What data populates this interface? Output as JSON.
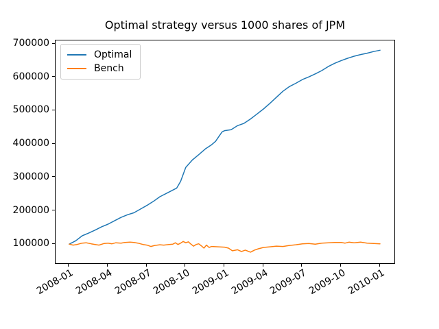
{
  "figure": {
    "background_color": "#ffffff",
    "frame_color": "#000000"
  },
  "chart_data": {
    "type": "line",
    "title": "Optimal strategy versus 1000 shares of JPM",
    "xlabel": "",
    "ylabel": "",
    "grid": false,
    "x_unit": "months since 2008-01",
    "xlim": [
      -1.055,
      25.11
    ],
    "ylim": [
      42850,
      710300
    ],
    "x_tick_positions": [
      0,
      3,
      6,
      9,
      12,
      15,
      18,
      21,
      24
    ],
    "x_tick_labels": [
      "2008-01",
      "2008-04",
      "2008-07",
      "2008-10",
      "2009-01",
      "2009-04",
      "2009-07",
      "2009-10",
      "2010-01"
    ],
    "x_tick_rotation_deg": 30,
    "y_ticks": [
      100000,
      200000,
      300000,
      400000,
      500000,
      600000,
      700000
    ],
    "y_tick_labels": [
      "100000",
      "200000",
      "300000",
      "400000",
      "500000",
      "600000",
      "700000"
    ],
    "legend": {
      "position": "upper left",
      "entries": [
        {
          "label": "Optimal",
          "color": "#1f77b4"
        },
        {
          "label": "Bench",
          "color": "#ff7f0e"
        }
      ]
    },
    "series": [
      {
        "name": "Optimal",
        "color": "#1f77b4",
        "x": [
          0,
          0.5,
          1,
          1.5,
          2,
          2.5,
          3,
          3.5,
          4,
          4.5,
          5,
          5.5,
          6,
          6.5,
          7,
          7.5,
          8,
          8.3,
          8.6,
          9,
          9.5,
          10,
          10.5,
          11,
          11.3,
          11.6,
          11.8,
          12,
          12.5,
          13,
          13.5,
          14,
          14.5,
          15,
          15.5,
          16,
          16.5,
          17,
          17.5,
          18,
          18.5,
          19,
          19.5,
          20,
          20.5,
          21,
          21.5,
          22,
          22.5,
          23,
          23.5,
          24
        ],
        "y": [
          100000,
          110000,
          125000,
          133000,
          142000,
          152000,
          160000,
          170000,
          180000,
          188000,
          194000,
          205000,
          216000,
          228000,
          242000,
          252000,
          262000,
          268000,
          288000,
          330000,
          352000,
          368000,
          385000,
          398000,
          408000,
          425000,
          436000,
          440000,
          443000,
          455000,
          462000,
          475000,
          490000,
          505000,
          522000,
          540000,
          558000,
          572000,
          582000,
          593000,
          601000,
          610000,
          620000,
          632000,
          642000,
          650000,
          657000,
          663000,
          668000,
          672000,
          677000,
          681000
        ]
      },
      {
        "name": "Bench",
        "color": "#ff7f0e",
        "x": [
          0,
          0.3,
          0.6,
          1,
          1.3,
          1.7,
          2,
          2.3,
          2.7,
          3,
          3.3,
          3.6,
          4,
          4.3,
          4.7,
          5,
          5.3,
          5.7,
          6,
          6.3,
          6.6,
          7,
          7.3,
          7.7,
          8,
          8.2,
          8.4,
          8.6,
          8.8,
          9,
          9.2,
          9.4,
          9.6,
          9.8,
          10,
          10.2,
          10.4,
          10.6,
          10.8,
          11,
          11.5,
          12,
          12.3,
          12.6,
          13,
          13.3,
          13.6,
          14,
          14.3,
          14.6,
          15,
          15.5,
          16,
          16.5,
          17,
          17.5,
          18,
          18.5,
          19,
          19.5,
          20,
          20.5,
          21,
          21.3,
          21.6,
          22,
          22.5,
          23,
          23.5,
          24
        ],
        "y": [
          100000,
          97000,
          99000,
          103000,
          104000,
          101000,
          99000,
          97000,
          102000,
          103000,
          101000,
          104000,
          103000,
          105000,
          106000,
          105000,
          103000,
          99000,
          97000,
          93000,
          96000,
          98000,
          97000,
          99000,
          100000,
          104000,
          99000,
          103000,
          108000,
          104000,
          107000,
          100000,
          94000,
          99000,
          101000,
          95000,
          88000,
          97000,
          90000,
          93000,
          92000,
          91000,
          88000,
          80000,
          83000,
          78000,
          82000,
          76000,
          82000,
          86000,
          90000,
          92000,
          94000,
          93000,
          96000,
          98000,
          101000,
          102000,
          100000,
          103000,
          104000,
          105000,
          105000,
          103000,
          106000,
          104000,
          106000,
          103000,
          102000,
          101000
        ]
      }
    ]
  }
}
